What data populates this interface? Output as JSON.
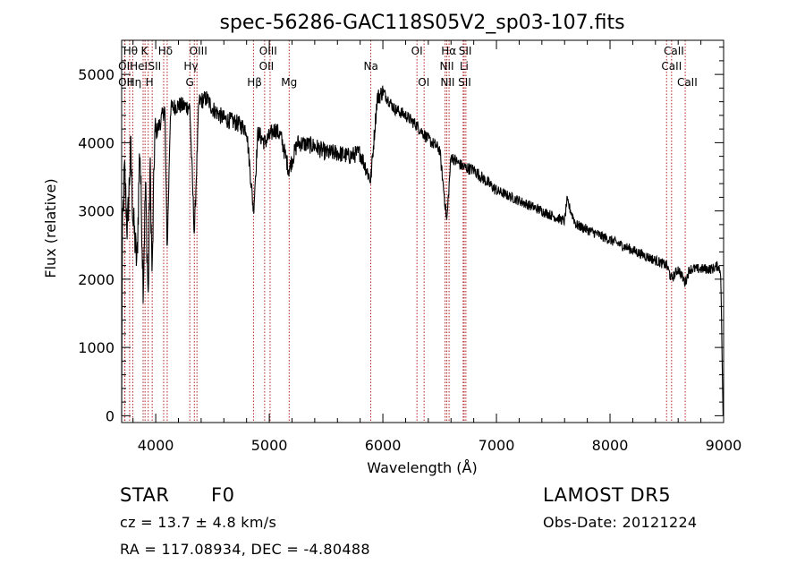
{
  "chart_data": {
    "type": "line",
    "title": "spec-56286-GAC118S05V2_sp03-107.fits",
    "xlabel": "Wavelength (Å)",
    "ylabel": "Flux (relative)",
    "xlim": [
      3700,
      9000
    ],
    "ylim": [
      -100,
      5500
    ],
    "x_ticks": [
      4000,
      5000,
      6000,
      7000,
      8000,
      9000
    ],
    "y_ticks": [
      0,
      1000,
      2000,
      3000,
      4000,
      5000
    ],
    "grid": false,
    "series_color": "#000000",
    "line_color": "#b22222",
    "spectrum_knots": [
      [
        3700,
        0
      ],
      [
        3705,
        2500
      ],
      [
        3725,
        3600
      ],
      [
        3750,
        2700
      ],
      [
        3780,
        3900
      ],
      [
        3800,
        2900
      ],
      [
        3835,
        2200
      ],
      [
        3860,
        4000
      ],
      [
        3890,
        1900
      ],
      [
        3910,
        3400
      ],
      [
        3934,
        1700
      ],
      [
        3950,
        3700
      ],
      [
        3969,
        2000
      ],
      [
        3990,
        4100
      ],
      [
        4030,
        4250
      ],
      [
        4080,
        4500
      ],
      [
        4101,
        2400
      ],
      [
        4130,
        4500
      ],
      [
        4200,
        4550
      ],
      [
        4300,
        4520
      ],
      [
        4340,
        2650
      ],
      [
        4380,
        4600
      ],
      [
        4450,
        4650
      ],
      [
        4500,
        4500
      ],
      [
        4600,
        4350
      ],
      [
        4700,
        4300
      ],
      [
        4800,
        4200
      ],
      [
        4861,
        3000
      ],
      [
        4900,
        4150
      ],
      [
        4960,
        4000
      ],
      [
        5050,
        4200
      ],
      [
        5100,
        4100
      ],
      [
        5172,
        3600
      ],
      [
        5250,
        4000
      ],
      [
        5400,
        3950
      ],
      [
        5500,
        3850
      ],
      [
        5600,
        3850
      ],
      [
        5700,
        3800
      ],
      [
        5800,
        3850
      ],
      [
        5893,
        3450
      ],
      [
        5950,
        4650
      ],
      [
        6000,
        4750
      ],
      [
        6100,
        4500
      ],
      [
        6200,
        4400
      ],
      [
        6300,
        4250
      ],
      [
        6400,
        4050
      ],
      [
        6500,
        3900
      ],
      [
        6563,
        2850
      ],
      [
        6600,
        3800
      ],
      [
        6700,
        3650
      ],
      [
        6800,
        3600
      ],
      [
        6900,
        3450
      ],
      [
        7000,
        3300
      ],
      [
        7200,
        3150
      ],
      [
        7400,
        3000
      ],
      [
        7600,
        2850
      ],
      [
        7620,
        3150
      ],
      [
        7700,
        2800
      ],
      [
        7900,
        2650
      ],
      [
        8100,
        2500
      ],
      [
        8300,
        2350
      ],
      [
        8500,
        2200
      ],
      [
        8542,
        2000
      ],
      [
        8600,
        2150
      ],
      [
        8662,
        1950
      ],
      [
        8700,
        2150
      ],
      [
        8800,
        2150
      ],
      [
        8900,
        2150
      ],
      [
        8950,
        2200
      ],
      [
        8975,
        2100
      ],
      [
        8990,
        500
      ],
      [
        8995,
        0
      ]
    ],
    "lines": [
      {
        "x": 3726,
        "label": "OII"
      },
      {
        "x": 3729,
        "label": "OII"
      },
      {
        "x": 3770,
        "label": "Hθ"
      },
      {
        "x": 3798,
        "label": "Hη"
      },
      {
        "x": 3889,
        "label": "HeI"
      },
      {
        "x": 3906,
        "label": "SII"
      },
      {
        "x": 3934,
        "label": "K"
      },
      {
        "x": 3969,
        "label": "H"
      },
      {
        "x": 4070,
        "label": "SII"
      },
      {
        "x": 4101,
        "label": "Hδ"
      },
      {
        "x": 4300,
        "label": "G"
      },
      {
        "x": 4340,
        "label": "Hγ"
      },
      {
        "x": 4363,
        "label": "OIII"
      },
      {
        "x": 4861,
        "label": "Hβ"
      },
      {
        "x": 4959,
        "label": "OIII"
      },
      {
        "x": 5007,
        "label": "OIII"
      },
      {
        "x": 5175,
        "label": "Mg"
      },
      {
        "x": 5893,
        "label": "Na"
      },
      {
        "x": 6300,
        "label": "OI"
      },
      {
        "x": 6363,
        "label": "OI"
      },
      {
        "x": 6548,
        "label": "NII"
      },
      {
        "x": 6563,
        "label": "Hα"
      },
      {
        "x": 6583,
        "label": "NII"
      },
      {
        "x": 6707,
        "label": "Li"
      },
      {
        "x": 6716,
        "label": "SII"
      },
      {
        "x": 6731,
        "label": "SII"
      },
      {
        "x": 8498,
        "label": "CaII"
      },
      {
        "x": 8542,
        "label": "CaII"
      },
      {
        "x": 8662,
        "label": "CaII"
      }
    ],
    "line_labels": [
      {
        "x": 3778,
        "row": 1,
        "text": "Hθ"
      },
      {
        "x": 3900,
        "row": 1,
        "text": "K"
      },
      {
        "x": 4085,
        "row": 1,
        "text": "Hδ"
      },
      {
        "x": 4375,
        "row": 1,
        "text": "OIII"
      },
      {
        "x": 4990,
        "row": 1,
        "text": "OIII"
      },
      {
        "x": 6300,
        "row": 1,
        "text": "OI"
      },
      {
        "x": 6580,
        "row": 1,
        "text": "Hα"
      },
      {
        "x": 6725,
        "row": 1,
        "text": "SII"
      },
      {
        "x": 8562,
        "row": 1,
        "text": "CaII"
      },
      {
        "x": 3735,
        "row": 2,
        "text": "OII"
      },
      {
        "x": 3850,
        "row": 2,
        "text": "HeI"
      },
      {
        "x": 3990,
        "row": 2,
        "text": "SII"
      },
      {
        "x": 4310,
        "row": 2,
        "text": "Hγ"
      },
      {
        "x": 4975,
        "row": 2,
        "text": "OII"
      },
      {
        "x": 5895,
        "row": 2,
        "text": "Na"
      },
      {
        "x": 6563,
        "row": 2,
        "text": "NII"
      },
      {
        "x": 6715,
        "row": 2,
        "text": "Li"
      },
      {
        "x": 8542,
        "row": 2,
        "text": "CaII"
      },
      {
        "x": 3735,
        "row": 3,
        "text": "OII"
      },
      {
        "x": 3810,
        "row": 3,
        "text": "Hη"
      },
      {
        "x": 3945,
        "row": 3,
        "text": "H"
      },
      {
        "x": 4300,
        "row": 3,
        "text": "G"
      },
      {
        "x": 4870,
        "row": 3,
        "text": "Hβ"
      },
      {
        "x": 5175,
        "row": 3,
        "text": "Mg"
      },
      {
        "x": 6360,
        "row": 3,
        "text": "OI"
      },
      {
        "x": 6570,
        "row": 3,
        "text": "NII"
      },
      {
        "x": 6720,
        "row": 3,
        "text": "SII"
      },
      {
        "x": 8680,
        "row": 3,
        "text": "CaII"
      }
    ]
  },
  "info": {
    "object_class": "STAR",
    "subclass": "F0",
    "survey": "LAMOST DR5",
    "cz": "cz = 13.7 ± 4.8 km/s",
    "obs_date": "Obs-Date: 20121224",
    "coords": "RA = 117.08934, DEC =  -4.80488"
  }
}
